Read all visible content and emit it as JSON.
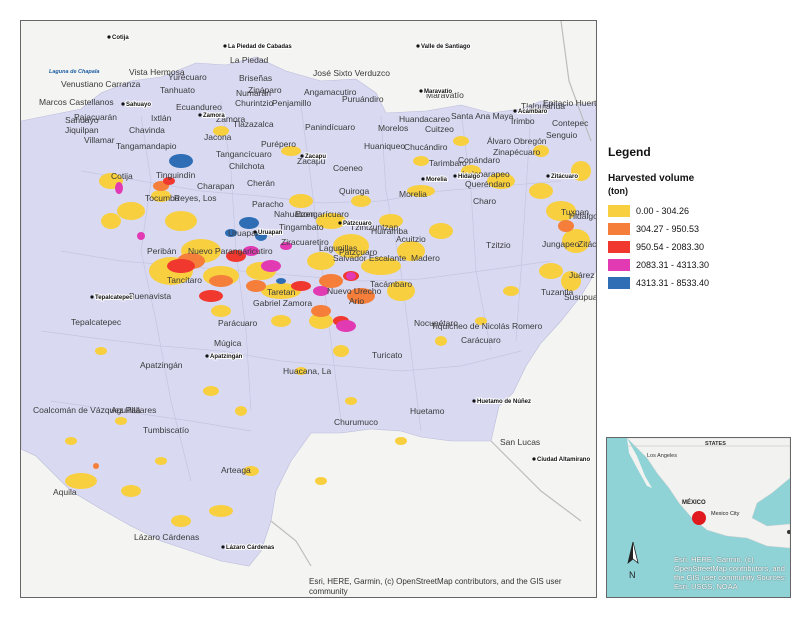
{
  "map": {
    "labels": [
      "Cotija",
      "Tinguindín",
      "Tangamandapio",
      "Jacona",
      "Zamora",
      "Tangancícuaro",
      "Chilchota",
      "Zacapu",
      "Purépero",
      "Tlazazalca",
      "Churintzio",
      "Penjamillo",
      "Angamacutiro",
      "Panindícuaro",
      "Puruándiro",
      "Morelos",
      "Huaniqueo",
      "Chucándiro",
      "Copándaro",
      "Cuitzeo",
      "Santa Ana Maya",
      "Huandacareo",
      "Álvaro Obregón",
      "Zinapécuaro",
      "Tarimbaro",
      "Indaparapeo",
      "Queréndaro",
      "Charo",
      "Morelia",
      "Tzitzio",
      "Hidalgo",
      "Jungapeo",
      "Tuxpan",
      "Zitácuaro",
      "Juárez",
      "Susupuato",
      "Tuzantla",
      "Madero",
      "Acuitzio",
      "Tiquicheo de Nicolás Romero",
      "Carácuaro",
      "Nocupétaro",
      "Turicato",
      "Huetamo",
      "San Lucas",
      "Churumuco",
      "Huacana, La",
      "Arteaga",
      "Tumbiscatío",
      "Aguililla",
      "Coalcomán de Vázquez Pallares",
      "Tepalcatepec",
      "Buenavista",
      "Apatzingán",
      "Parácuaro",
      "Múgica",
      "Gabriel Zamora",
      "Nuevo Urecho",
      "Taretan",
      "Salvador Escalante",
      "Tacámbaro",
      "Ario",
      "Uruapan",
      "Tancítaro",
      "Nuevo Parangaricutiro",
      "Peribán",
      "Tocumbo",
      "Reyes, Los",
      "Charapan",
      "Cherán",
      "Paracho",
      "Nahuatzen",
      "Erongarícuaro",
      "Quiroga",
      "Coeneo",
      "Tzintzuntzan",
      "Pátzcuaro",
      "Huiramba",
      "Lagunillas",
      "Tingambato",
      "Ziracuaretiro",
      "Aquila",
      "Lázaro Cárdenas",
      "Marcos Castellanos",
      "Venustiano Carranza",
      "Sahuayo",
      "Jiquilpan",
      "Villamar",
      "Chavinda",
      "Pajacuarán",
      "Ixtlán",
      "Ecuandureo",
      "Vista Hermosa",
      "Tanhuato",
      "Yurécuaro",
      "Briseñas",
      "Numarán",
      "Zináparo",
      "La Piedad",
      "José Sixto Verduzco",
      "Epitacio Huerta",
      "Contepec",
      "Maravatío",
      "Senguio",
      "Irimbo",
      "Tlalpujahua"
    ],
    "cities": [
      "Cotija",
      "La Piedad de Cabadas",
      "Valle de Santiago",
      "Sahuayo",
      "Zamora",
      "Maravatío",
      "Zacapu",
      "Morelia",
      "Hidalgo",
      "Zitácuaro",
      "Uruapan",
      "Pátzcuaro",
      "Apatzingán",
      "Tepalcatepec",
      "Huetamo de Núñez",
      "Ciudad Altamirano",
      "Lázaro Cárdenas",
      "Acámbaro"
    ],
    "water": [
      "Laguna de Chapala"
    ],
    "attribution": "Esri, HERE, Garmin, (c) OpenStreetMap contributors, and the GIS user community"
  },
  "legend": {
    "title": "Legend",
    "subtitle": "Harvested volume",
    "units": "(ton)",
    "classes": [
      {
        "label": "0.00 - 304.26",
        "color": "#f8cf3f"
      },
      {
        "label": "304.27 - 950.53",
        "color": "#f47e3a"
      },
      {
        "label": "950.54 - 2083.30",
        "color": "#f0382f"
      },
      {
        "label": "2083.31 - 4313.30",
        "color": "#e13ab3"
      },
      {
        "label": "4313.31 - 8533.40",
        "color": "#2f6db5"
      }
    ]
  },
  "inset": {
    "labels": [
      "Los Angeles",
      "STATES",
      "MÉXICO",
      "Mexico City"
    ],
    "attribution": "Esri, HERE, Garmin, (c) OpenStreetMap contributors, and the GIS user community Sources: Esri, USGS, NOAA",
    "north": "N"
  }
}
